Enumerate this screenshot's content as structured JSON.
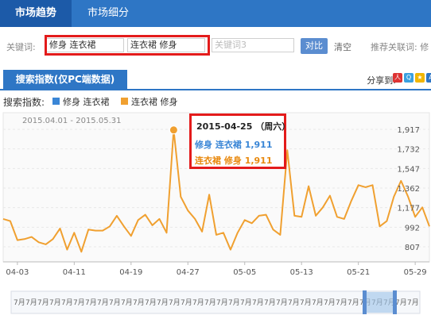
{
  "tabs": [
    {
      "label": "市场趋势",
      "active": true
    },
    {
      "label": "市场细分",
      "active": false
    }
  ],
  "keywords": {
    "label": "关键词:",
    "kw1": "修身 连衣裙",
    "kw2": "连衣裙 修身",
    "kw3_placeholder": "关键词3",
    "compare_button": "对比",
    "clear_link": "清空",
    "recommend_label": "推荐关联词: 修"
  },
  "section": {
    "title": "搜索指数(仅PC端数据)",
    "share_label": "分享到:",
    "share_icons": [
      "renren-icon",
      "qq-icon",
      "qzone-icon",
      "weibo-icon"
    ]
  },
  "legend": {
    "label": "搜索指数:",
    "items": [
      {
        "name": "修身 连衣裙",
        "color": "#3a86d6"
      },
      {
        "name": "连衣裙 修身",
        "color": "#f0a030"
      }
    ]
  },
  "tooltip": {
    "date": "2015-04-25 （周六）",
    "rows": [
      {
        "name": "修身 连衣裙",
        "value": "1,911",
        "color": "#3a86d6"
      },
      {
        "name": "连衣裙 修身",
        "value": "1,911",
        "color": "#f0a030"
      }
    ]
  },
  "chart_data": {
    "type": "line",
    "date_range": "2015.04.01 - 2015.05.31",
    "yticks": [
      "1,917",
      "1,732",
      "1,547",
      "1,362",
      "1,177",
      "992",
      "807"
    ],
    "ytick_values": [
      1917,
      1732,
      1547,
      1362,
      1177,
      992,
      807
    ],
    "ylim": [
      750,
      2000
    ],
    "xticks": [
      "04-03",
      "04-11",
      "04-19",
      "04-27",
      "05-05",
      "05-13",
      "05-21",
      "05-29"
    ],
    "xtick_index": [
      2,
      10,
      18,
      26,
      34,
      42,
      50,
      58
    ],
    "highlight_index": 24,
    "series": [
      {
        "name": "连衣裙 修身",
        "color": "#f0a030",
        "values": [
          1070,
          1050,
          870,
          880,
          900,
          850,
          830,
          880,
          980,
          780,
          940,
          760,
          970,
          960,
          960,
          1000,
          1100,
          1000,
          910,
          1060,
          1110,
          1010,
          1070,
          940,
          1911,
          1280,
          1150,
          1070,
          950,
          1300,
          920,
          940,
          780,
          940,
          1060,
          1030,
          1100,
          1110,
          970,
          920,
          1720,
          1100,
          1090,
          1380,
          1100,
          1180,
          1290,
          1090,
          1070,
          1240,
          1390,
          1370,
          1390,
          1000,
          1050,
          1280,
          1430,
          1280,
          1090,
          1180,
          1000
        ]
      },
      {
        "name": "修身 连衣裙",
        "color": "#3a86d6",
        "values": []
      }
    ],
    "timeline_label": "7月"
  }
}
